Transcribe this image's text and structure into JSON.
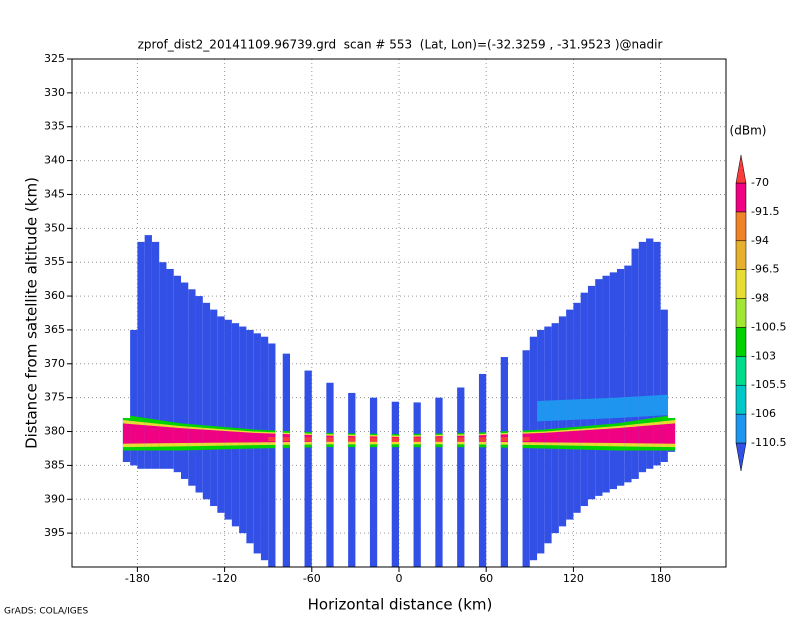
{
  "chart_data": {
    "type": "profile",
    "title": "zprof_dist2_20141109.96739.grd  scan # 553  (Lat, Lon)=(-32.3259 , -31.9523 )@nadir",
    "x_label": "Horizontal distance (km)",
    "y_label": "Distance from satellite altitude (km)",
    "footer": "GrADS: COLA/IGES",
    "xlim": [
      -225,
      225
    ],
    "ylim": [
      400,
      325
    ],
    "xticks": [
      -180,
      -120,
      -60,
      0,
      60,
      120,
      180
    ],
    "yticks": [
      325,
      330,
      335,
      340,
      345,
      350,
      355,
      360,
      365,
      370,
      375,
      380,
      385,
      390,
      395
    ],
    "grid": true,
    "x_edges": [
      -190,
      -185,
      -180,
      -175,
      -170,
      -165,
      -160,
      -155,
      -150,
      -145,
      -140,
      -135,
      -130,
      -125,
      -120,
      -115,
      -110,
      -105,
      -100,
      -95,
      -90,
      -85,
      -80,
      -75,
      -70,
      -65,
      -60,
      -55,
      -50,
      -45,
      -40,
      -35,
      -30,
      -25,
      -20,
      -15,
      -10,
      -5,
      0,
      5,
      10,
      15,
      20,
      25,
      30,
      35,
      40,
      45,
      50,
      55,
      60,
      65,
      70,
      75,
      80,
      85,
      90,
      95,
      100,
      105,
      110,
      115,
      120,
      125,
      130,
      135,
      140,
      145,
      150,
      155,
      160,
      165,
      170,
      175,
      180,
      185,
      190
    ],
    "top": [
      378,
      365,
      352,
      351,
      352,
      355,
      356,
      357,
      358,
      359,
      360,
      361,
      362,
      363,
      363.5,
      364,
      364.5,
      365,
      365.5,
      366,
      367,
      null,
      368.5,
      null,
      null,
      371,
      null,
      null,
      372.8,
      null,
      null,
      374.3,
      null,
      null,
      375,
      null,
      null,
      375.6,
      null,
      null,
      375.7,
      null,
      null,
      375,
      null,
      null,
      373.5,
      null,
      null,
      371.5,
      null,
      null,
      369,
      null,
      null,
      368,
      366,
      365,
      364.5,
      364,
      363,
      362,
      361,
      359.5,
      358.5,
      357.5,
      357,
      356.5,
      356,
      355.5,
      353,
      352,
      351.5,
      352,
      362,
      378
    ],
    "bottom": [
      384.5,
      385,
      385.5,
      385.5,
      385.5,
      385.5,
      385.5,
      386,
      387,
      388,
      389,
      390,
      391,
      392,
      393,
      394,
      395,
      396.5,
      398,
      399,
      400,
      null,
      400,
      null,
      null,
      400,
      null,
      null,
      400,
      null,
      null,
      400,
      null,
      null,
      400,
      null,
      null,
      400,
      null,
      null,
      400,
      null,
      null,
      400,
      null,
      null,
      400,
      null,
      null,
      400,
      null,
      null,
      400,
      null,
      null,
      400,
      399,
      398,
      396.5,
      395,
      394,
      393,
      392,
      391,
      390,
      389.5,
      389,
      388.5,
      388,
      387.5,
      387,
      386,
      385.5,
      385,
      384.5,
      383
    ],
    "layers": [
      {
        "color": "#1e96f0",
        "x": [
          95,
          150,
          190
        ],
        "top": [
          375.5,
          375,
          374.5
        ],
        "bottom": [
          378.5,
          378,
          377.5
        ]
      },
      {
        "color": "#00d200",
        "x": [
          -190,
          -150,
          -100,
          -50,
          0,
          50,
          100,
          150,
          190
        ],
        "top": [
          377.5,
          378.8,
          379.7,
          380.2,
          380.4,
          380.2,
          379.7,
          378.8,
          377.5
        ],
        "bottom": [
          382.8,
          382.8,
          382.5,
          382.3,
          382.3,
          382.3,
          382.5,
          382.8,
          382.8
        ]
      },
      {
        "color": "#e6dc32",
        "x": [
          -190,
          -150,
          -100,
          -50,
          0,
          50,
          100,
          150,
          190
        ],
        "top": [
          378.3,
          379.2,
          380,
          380.4,
          380.6,
          380.4,
          380,
          379.2,
          378.3
        ],
        "bottom": [
          382.3,
          382.2,
          382,
          381.9,
          381.9,
          381.9,
          382,
          382.2,
          382.3
        ]
      },
      {
        "color": "#f00082",
        "x": [
          -190,
          -150,
          -100,
          -50,
          0,
          50,
          100,
          150,
          190
        ],
        "top": [
          378.8,
          379.5,
          380.2,
          380.6,
          380.8,
          380.6,
          380.2,
          379.5,
          378.8
        ],
        "bottom": [
          381.8,
          381.7,
          381.6,
          381.5,
          381.5,
          381.5,
          381.6,
          381.7,
          381.8
        ]
      },
      {
        "color": "#fa3c3c",
        "x": [
          -90,
          0,
          90
        ],
        "top": [
          380.8,
          380.9,
          380.8
        ],
        "bottom": [
          381.4,
          381.5,
          381.4
        ]
      }
    ],
    "colorbar": {
      "unit": "(dBm)",
      "levels": [
        -110.5,
        -106,
        -105.5,
        -103,
        -100.5,
        -98,
        -96.5,
        -94,
        -91.5,
        -70
      ],
      "colors": [
        "#3250e6",
        "#1e96f0",
        "#00c8c8",
        "#00dc8c",
        "#00d200",
        "#a0e632",
        "#e6dc32",
        "#e6af2d",
        "#f08228",
        "#f00082",
        "#fa3c3c"
      ]
    }
  }
}
